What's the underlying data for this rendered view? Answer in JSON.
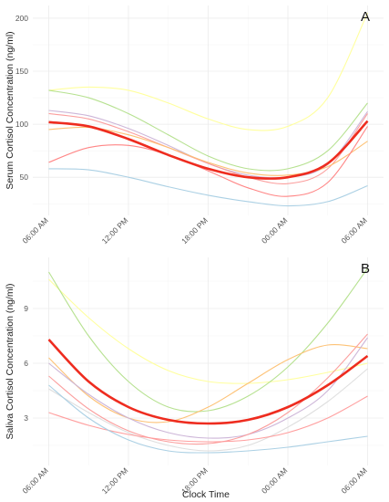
{
  "xlabel": "Clock Time",
  "chart_data": [
    {
      "type": "line",
      "panel_label": "A",
      "ylabel": "Serum Cortisol Concentration (ng/ml)",
      "x_ticks": [
        "06:00 AM",
        "12:00 PM",
        "18:00 PM",
        "00:00 AM",
        "06:00 AM"
      ],
      "x_tick_hours": [
        0,
        6,
        12,
        18,
        24
      ],
      "xlim": [
        -1.2,
        25.2
      ],
      "ylim": [
        14,
        212
      ],
      "y_ticks": [
        50,
        100,
        150,
        200
      ],
      "grid": true,
      "background_series": [
        {
          "color": "#ffff99",
          "x": [
            0,
            3,
            6,
            9,
            12,
            15,
            18,
            21,
            24
          ],
          "y": [
            132,
            135,
            132,
            120,
            105,
            95,
            98,
            125,
            205
          ]
        },
        {
          "color": "#b2df8a",
          "x": [
            0,
            3,
            6,
            9,
            12,
            15,
            18,
            21,
            24
          ],
          "y": [
            132,
            125,
            110,
            90,
            70,
            58,
            58,
            75,
            120
          ]
        },
        {
          "color": "#cab2d6",
          "x": [
            0,
            3,
            6,
            9,
            12,
            15,
            18,
            21,
            24
          ],
          "y": [
            113,
            108,
            96,
            80,
            63,
            52,
            50,
            62,
            112
          ]
        },
        {
          "color": "#fb9a99",
          "x": [
            0,
            3,
            6,
            9,
            12,
            15,
            18,
            21,
            24
          ],
          "y": [
            110,
            105,
            93,
            78,
            63,
            50,
            44,
            58,
            110
          ]
        },
        {
          "color": "#fdbf6f",
          "x": [
            0,
            3,
            6,
            9,
            12,
            15,
            18,
            21,
            24
          ],
          "y": [
            95,
            97,
            90,
            78,
            64,
            54,
            52,
            60,
            84
          ]
        },
        {
          "color": "#ff7f7f",
          "x": [
            0,
            3,
            6,
            9,
            12,
            15,
            18,
            21,
            24
          ],
          "y": [
            64,
            78,
            80,
            71,
            56,
            40,
            32,
            45,
            98
          ]
        },
        {
          "color": "#a6cee3",
          "x": [
            0,
            3,
            6,
            9,
            12,
            15,
            18,
            21,
            24
          ],
          "y": [
            58,
            57,
            50,
            41,
            33,
            27,
            23,
            27,
            42
          ]
        }
      ],
      "mean_series": {
        "color": "#ee2c1f",
        "x": [
          0,
          3,
          6,
          9,
          12,
          15,
          18,
          21,
          24
        ],
        "y": [
          102,
          98,
          86,
          71,
          58,
          50,
          50,
          63,
          103
        ]
      }
    },
    {
      "type": "line",
      "panel_label": "B",
      "ylabel": "Saliva Cortisol Concentration (ng/ml)",
      "x_ticks": [
        "06:00 AM",
        "12:00 PM",
        "18:00 PM",
        "00:00 AM",
        "06:00 AM"
      ],
      "x_tick_hours": [
        0,
        6,
        12,
        18,
        24
      ],
      "xlim": [
        -1.2,
        25.2
      ],
      "ylim": [
        0.4,
        11.8
      ],
      "y_ticks": [
        3,
        6,
        9
      ],
      "grid": true,
      "background_series": [
        {
          "color": "#ffff99",
          "x": [
            0,
            3,
            6,
            9,
            12,
            15,
            18,
            21,
            24
          ],
          "y": [
            10.6,
            8.5,
            6.8,
            5.6,
            5.0,
            4.9,
            5.1,
            5.5,
            6.0
          ]
        },
        {
          "color": "#b2df8a",
          "x": [
            0,
            3,
            6,
            9,
            12,
            15,
            18,
            21,
            24
          ],
          "y": [
            11.0,
            7.5,
            5.0,
            3.6,
            3.4,
            4.2,
            5.8,
            8.2,
            11.2
          ]
        },
        {
          "color": "#fdbf6f",
          "x": [
            0,
            3,
            6,
            9,
            12,
            15,
            18,
            21,
            24
          ],
          "y": [
            6.3,
            4.2,
            3.0,
            2.8,
            3.6,
            4.9,
            6.2,
            7.0,
            6.8
          ]
        },
        {
          "color": "#cab2d6",
          "x": [
            0,
            3,
            6,
            9,
            12,
            15,
            18,
            21,
            24
          ],
          "y": [
            6.0,
            4.3,
            3.0,
            2.2,
            1.9,
            2.1,
            3.0,
            4.5,
            7.4
          ]
        },
        {
          "color": "#fb9a99",
          "x": [
            0,
            3,
            6,
            9,
            12,
            15,
            18,
            21,
            24
          ],
          "y": [
            5.3,
            3.5,
            2.3,
            1.7,
            1.6,
            2.1,
            3.3,
            5.2,
            7.6
          ]
        },
        {
          "color": "#dddddd",
          "x": [
            0,
            3,
            6,
            9,
            12,
            15,
            18,
            21,
            24
          ],
          "y": [
            4.6,
            3.3,
            2.2,
            1.5,
            1.2,
            1.5,
            2.5,
            3.9,
            5.7
          ]
        },
        {
          "color": "#ff9999",
          "x": [
            0,
            3,
            6,
            9,
            12,
            15,
            18,
            21,
            24
          ],
          "y": [
            3.3,
            2.6,
            2.1,
            1.8,
            1.7,
            1.8,
            2.2,
            3.0,
            4.2
          ]
        },
        {
          "color": "#a6cee3",
          "x": [
            0,
            3,
            6,
            9,
            12,
            15,
            18,
            21,
            24
          ],
          "y": [
            4.8,
            3.0,
            1.8,
            1.2,
            1.1,
            1.2,
            1.4,
            1.7,
            2.0
          ]
        }
      ],
      "mean_series": {
        "color": "#ee2c1f",
        "x": [
          0,
          3,
          6,
          9,
          12,
          15,
          18,
          21,
          24
        ],
        "y": [
          7.3,
          5.0,
          3.6,
          2.9,
          2.7,
          2.9,
          3.6,
          4.8,
          6.4
        ]
      }
    }
  ]
}
